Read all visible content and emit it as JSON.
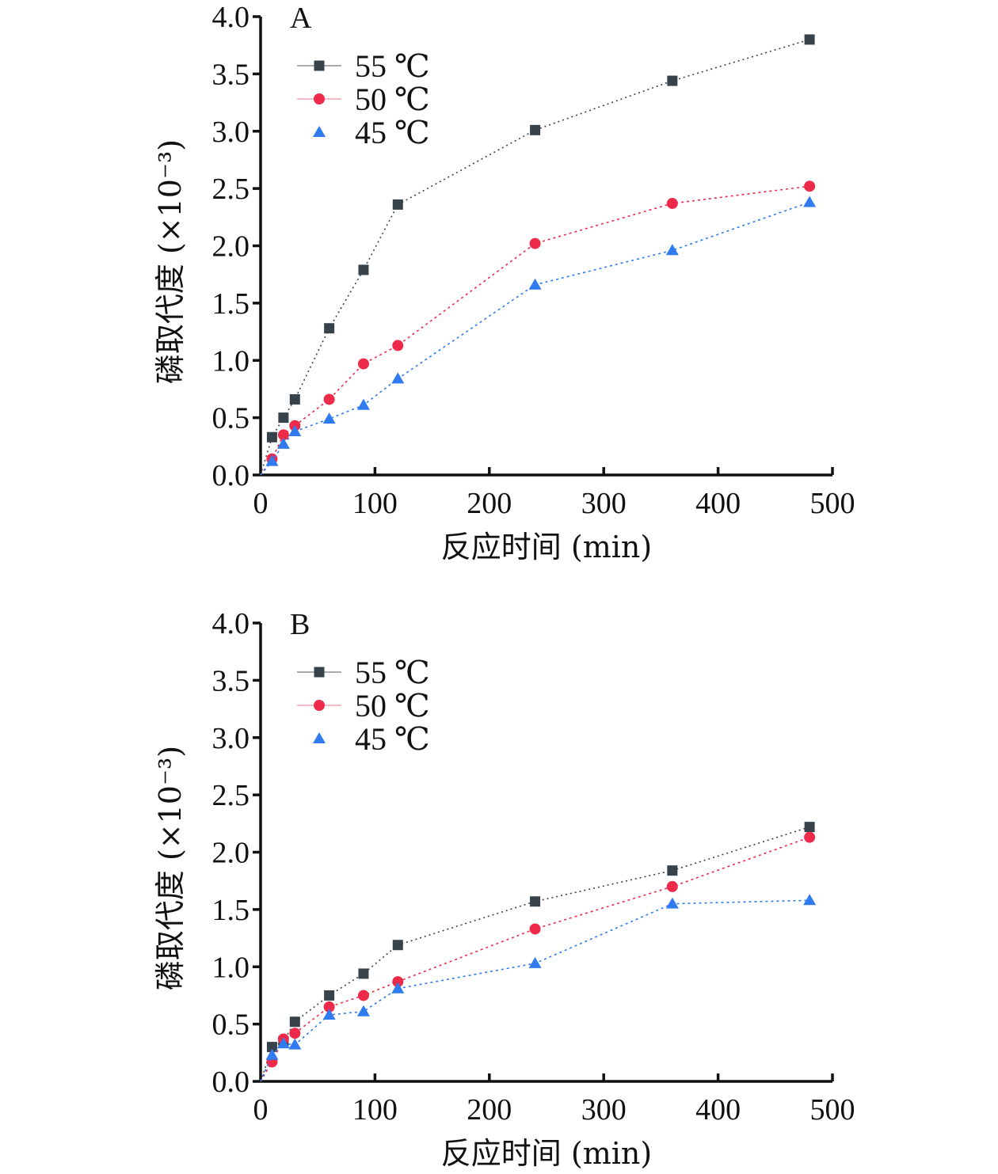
{
  "chart_data": [
    {
      "type": "line",
      "panel_label": "A",
      "xlabel": "反应时间 (min)",
      "ylabel": "磷取代度 (×10⁻³)",
      "xlim": [
        0,
        500
      ],
      "ylim": [
        0,
        4.0
      ],
      "xticks": [
        "0",
        "100",
        "200",
        "300",
        "400",
        "500"
      ],
      "yticks": [
        "0.0",
        "0.5",
        "1.0",
        "1.5",
        "2.0",
        "2.5",
        "3.0",
        "3.5",
        "4.0"
      ],
      "grid": false,
      "legend_position": "top-left",
      "x": [
        0,
        10,
        20,
        30,
        60,
        90,
        120,
        240,
        360,
        480
      ],
      "series": [
        {
          "name": "55 ℃",
          "marker": "square",
          "color": "#37424a",
          "values": [
            0,
            0.33,
            0.5,
            0.66,
            1.28,
            1.79,
            2.36,
            3.01,
            3.44,
            3.8
          ]
        },
        {
          "name": "50 ℃",
          "marker": "circle",
          "color": "#ee2a4b",
          "values": [
            0,
            0.14,
            0.35,
            0.43,
            0.66,
            0.97,
            1.13,
            2.02,
            2.37,
            2.52
          ]
        },
        {
          "name": "45 ℃",
          "marker": "triangle",
          "color": "#2f7bef",
          "values": [
            0,
            0.12,
            0.27,
            0.38,
            0.49,
            0.61,
            0.84,
            1.66,
            1.96,
            2.38
          ]
        }
      ]
    },
    {
      "type": "line",
      "panel_label": "B",
      "xlabel": "反应时间 (min)",
      "ylabel": "磷取代度 (×10⁻³)",
      "xlim": [
        0,
        500
      ],
      "ylim": [
        0,
        4.0
      ],
      "xticks": [
        "0",
        "100",
        "200",
        "300",
        "400",
        "500"
      ],
      "yticks": [
        "0.0",
        "0.5",
        "1.0",
        "1.5",
        "2.0",
        "2.5",
        "3.0",
        "3.5",
        "4.0"
      ],
      "grid": false,
      "legend_position": "top-left",
      "x": [
        0,
        10,
        20,
        30,
        60,
        90,
        120,
        240,
        360,
        480
      ],
      "series": [
        {
          "name": "55 ℃",
          "marker": "square",
          "color": "#37424a",
          "values": [
            0,
            0.3,
            0.35,
            0.52,
            0.75,
            0.94,
            1.19,
            1.57,
            1.84,
            2.22
          ]
        },
        {
          "name": "50 ℃",
          "marker": "circle",
          "color": "#ee2a4b",
          "values": [
            0,
            0.17,
            0.37,
            0.42,
            0.65,
            0.75,
            0.87,
            1.33,
            1.7,
            2.13
          ]
        },
        {
          "name": "45 ℃",
          "marker": "triangle",
          "color": "#2f7bef",
          "values": [
            0,
            0.23,
            0.33,
            0.32,
            0.58,
            0.61,
            0.81,
            1.03,
            1.55,
            1.58
          ]
        }
      ]
    }
  ]
}
